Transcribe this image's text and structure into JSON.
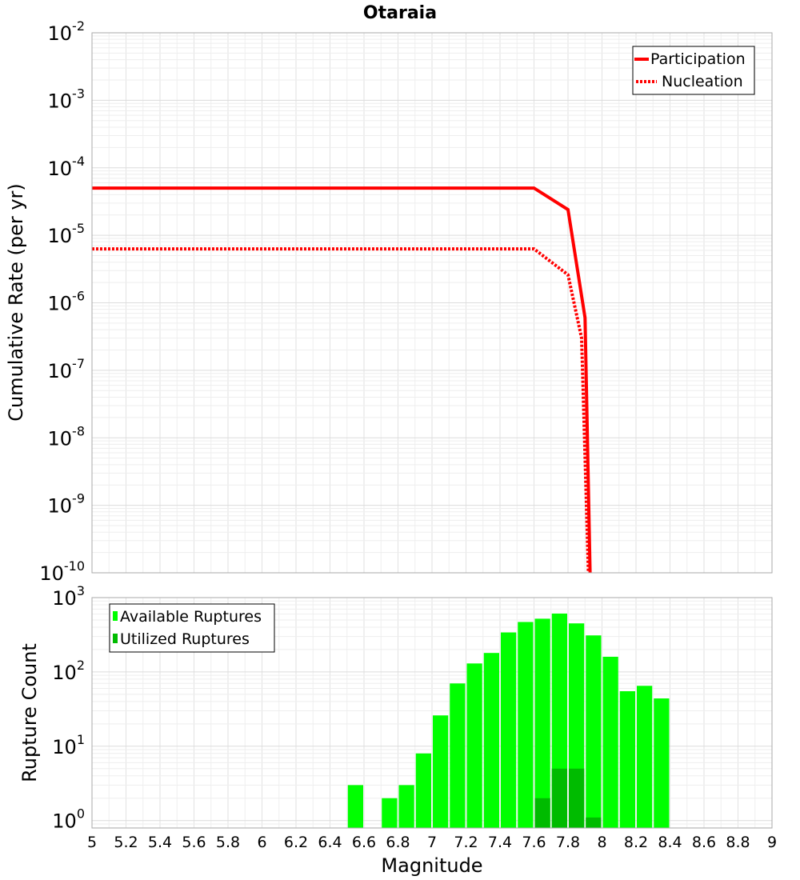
{
  "chart_data": [
    {
      "type": "line",
      "title": "Otaraia",
      "xlabel": "",
      "ylabel": "Cumulative Rate (per yr)",
      "xlim": [
        5,
        9
      ],
      "ylim_log10": [
        -10,
        -2
      ],
      "yscale": "log",
      "y_tick_exponents": [
        "-2",
        "-3",
        "-4",
        "-5",
        "-6",
        "-7",
        "-8",
        "-9",
        "-10"
      ],
      "y_tick_base": "10",
      "legend": {
        "position": "top-right",
        "entries": [
          "Participation",
          "Nucleation"
        ]
      },
      "series": [
        {
          "name": "Participation",
          "color": "#ff0000",
          "style": "solid",
          "points": [
            [
              5.0,
              5e-05
            ],
            [
              7.6,
              5e-05
            ],
            [
              7.8,
              2.4e-05
            ],
            [
              7.9,
              6e-07
            ],
            [
              7.93,
              1e-10
            ]
          ]
        },
        {
          "name": "Nucleation",
          "color": "#ff0000",
          "style": "dotted",
          "points": [
            [
              5.0,
              6.3e-06
            ],
            [
              7.6,
              6.3e-06
            ],
            [
              7.8,
              2.6e-06
            ],
            [
              7.88,
              3e-07
            ],
            [
              7.92,
              1e-10
            ]
          ]
        }
      ]
    },
    {
      "type": "bar",
      "title": "",
      "xlabel": "Magnitude",
      "ylabel": "Rupture Count",
      "xlim": [
        5,
        9
      ],
      "ylim_log10": [
        -0.1,
        3
      ],
      "yscale": "log",
      "y_tick_exponents": [
        "3",
        "2",
        "1",
        "0"
      ],
      "y_tick_base": "10",
      "x_tick_labels": [
        "5",
        "5.2",
        "5.4",
        "5.6",
        "5.8",
        "6",
        "6.2",
        "6.4",
        "6.6",
        "6.8",
        "7",
        "7.2",
        "7.4",
        "7.6",
        "7.8",
        "8",
        "8.2",
        "8.4",
        "8.6",
        "8.8",
        "9"
      ],
      "bin_width": 0.1,
      "legend": {
        "position": "top-left",
        "entries": [
          "Available Ruptures",
          "Utilized Ruptures"
        ]
      },
      "series": [
        {
          "name": "Available Ruptures",
          "color": "#00ff00",
          "bins": [
            [
              6.55,
              3
            ],
            [
              6.75,
              2
            ],
            [
              6.85,
              3
            ],
            [
              6.95,
              8
            ],
            [
              7.05,
              26
            ],
            [
              7.15,
              70
            ],
            [
              7.25,
              130
            ],
            [
              7.35,
              180
            ],
            [
              7.45,
              340
            ],
            [
              7.55,
              470
            ],
            [
              7.65,
              520
            ],
            [
              7.75,
              610
            ],
            [
              7.85,
              450
            ],
            [
              7.95,
              310
            ],
            [
              8.05,
              160
            ],
            [
              8.15,
              55
            ],
            [
              8.25,
              65
            ],
            [
              8.35,
              44
            ]
          ]
        },
        {
          "name": "Utilized Ruptures",
          "color": "#00bb00",
          "bins": [
            [
              7.65,
              2
            ],
            [
              7.75,
              5
            ],
            [
              7.85,
              5
            ],
            [
              7.95,
              1.1
            ]
          ]
        }
      ]
    }
  ]
}
